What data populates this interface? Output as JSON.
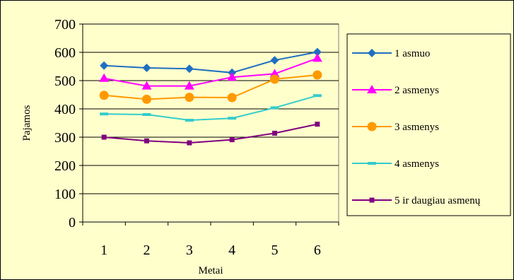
{
  "chart_data": {
    "type": "line",
    "title": "",
    "xlabel": "Metai",
    "ylabel": "Pajamos",
    "categories": [
      "1",
      "2",
      "3",
      "4",
      "5",
      "6"
    ],
    "ylim": [
      0,
      700
    ],
    "yticks": [
      "0",
      "100",
      "200",
      "300",
      "400",
      "500",
      "600",
      "700"
    ],
    "grid": true,
    "legend_position": "right",
    "background_color": "#FFFFCC",
    "plot_background_color": "#FFFFCC",
    "series": [
      {
        "name": "1 asmuo",
        "values": [
          553,
          545,
          542,
          528,
          572,
          601
        ],
        "color": "#1F6FC1",
        "marker": "diamond"
      },
      {
        "name": "2 asmenys",
        "values": [
          508,
          481,
          481,
          512,
          524,
          579
        ],
        "color": "#FF00FF",
        "marker": "triangle"
      },
      {
        "name": "3 asmenys",
        "values": [
          448,
          434,
          441,
          440,
          505,
          520
        ],
        "color": "#FF9900",
        "marker": "circle"
      },
      {
        "name": "4 asmenys",
        "values": [
          382,
          380,
          360,
          367,
          404,
          447
        ],
        "color": "#33CCCC",
        "marker": "dash"
      },
      {
        "name": "5 ir daugiau asmenų",
        "values": [
          300,
          287,
          280,
          291,
          314,
          346
        ],
        "color": "#800080",
        "marker": "square"
      }
    ]
  }
}
